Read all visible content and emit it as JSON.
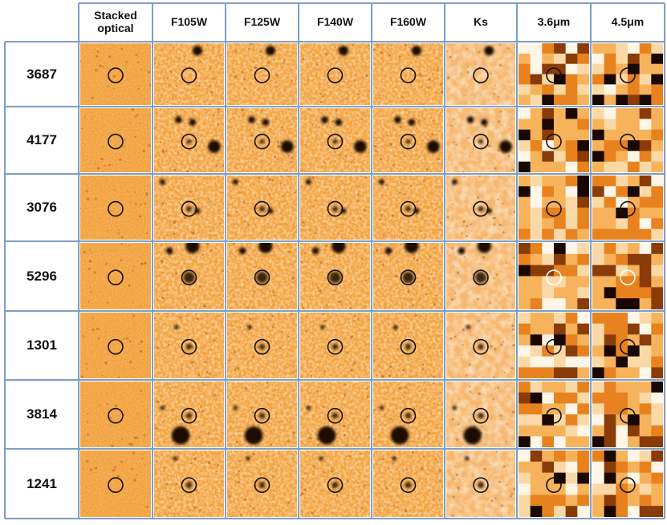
{
  "table": {
    "columns": [
      "Stacked\noptical",
      "F105W",
      "F125W",
      "F140W",
      "F160W",
      "Ks",
      "3.6μm",
      "4.5μm"
    ],
    "rows": [
      "3687",
      "4177",
      "3076",
      "5296",
      "1301",
      "3814",
      "1241"
    ]
  },
  "colors": {
    "stamp_background": "#f3a23e",
    "dark_source": "#1a0800",
    "grid_line": "#7d9ec4",
    "circle_dark": "#111111",
    "circle_light": "#ffffff"
  }
}
